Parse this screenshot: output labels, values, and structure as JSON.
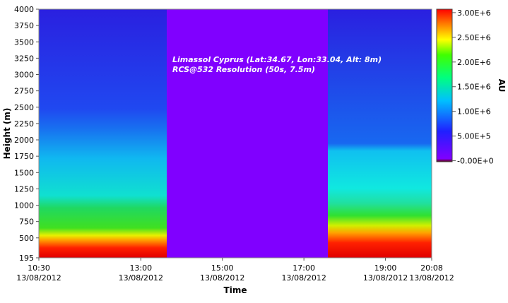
{
  "chart_data": {
    "type": "heatmap",
    "annotations": [
      "Limassol Cyprus (Lat:34.67, Lon:33.04, Alt: 8m)",
      "RCS@532 Resolution (50s, 7.5m)"
    ],
    "xlabel": "Time",
    "ylabel": "Height (m)",
    "xlim": [
      "2012-08-13T10:30",
      "2012-08-13T20:08"
    ],
    "xticks": [
      {
        "value": "2012-08-13T10:30",
        "label": "10:30\n13/08/2012"
      },
      {
        "value": "2012-08-13T13:00",
        "label": "13:00\n13/08/2012"
      },
      {
        "value": "2012-08-13T15:00",
        "label": "15:00\n13/08/2012"
      },
      {
        "value": "2012-08-13T17:00",
        "label": "17:00\n13/08/2012"
      },
      {
        "value": "2012-08-13T19:00",
        "label": "19:00\n13/08/2012"
      },
      {
        "value": "2012-08-13T20:08",
        "label": "20:08\n13/08/2012"
      }
    ],
    "ylim": [
      195,
      4000
    ],
    "yticks": [
      195,
      500,
      750,
      1000,
      1250,
      1500,
      1750,
      2000,
      2250,
      2500,
      2750,
      3000,
      3250,
      3500,
      3750,
      4000
    ],
    "colorbar": {
      "label": "AU",
      "lim": [
        -20000,
        3070000
      ],
      "ticks": [
        {
          "value": 0,
          "label": "-0.00E+0"
        },
        {
          "value": 500000,
          "label": "5.00E+5"
        },
        {
          "value": 1000000,
          "label": "1.00E+6"
        },
        {
          "value": 1500000,
          "label": "1.50E+6"
        },
        {
          "value": 2000000,
          "label": "2.00E+6"
        },
        {
          "value": 2500000,
          "label": "2.50E+6"
        },
        {
          "value": 3000000,
          "label": "3.00E+6"
        }
      ]
    }
  }
}
